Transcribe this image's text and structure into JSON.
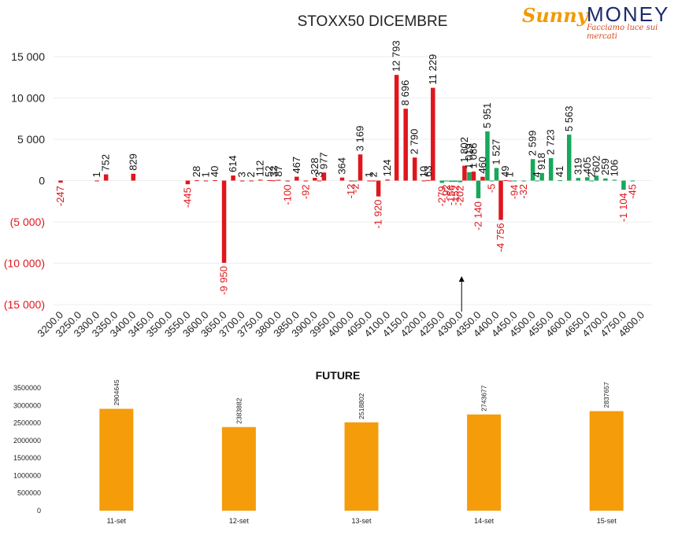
{
  "logo": {
    "brand_part1": "Sunny",
    "brand_part2": "MONEY",
    "tagline": "Facciamo luce sui mercati"
  },
  "colors": {
    "positive": "#16a85b",
    "negative": "#e0161c",
    "future_bar": "#f59c0a",
    "axis_text": "#333333",
    "neg_tick": "#e0161c",
    "logo_orange": "#f29a00",
    "logo_navy": "#1a2a6b"
  },
  "chart_data": [
    {
      "type": "bar",
      "title": "STOXX50 DICEMBRE",
      "ylim": [
        -15000,
        15000
      ],
      "y_ticks": [
        {
          "value": 15000,
          "label": "15 000"
        },
        {
          "value": 10000,
          "label": "10 000"
        },
        {
          "value": 5000,
          "label": "5 000"
        },
        {
          "value": 0,
          "label": "0"
        },
        {
          "value": -5000,
          "label": "(5 000)"
        },
        {
          "value": -10000,
          "label": "(10 000)"
        },
        {
          "value": -15000,
          "label": "(15 000)"
        }
      ],
      "categories": [
        "3200.0",
        "3250.0",
        "3300.0",
        "3350.0",
        "3400.0",
        "3450.0",
        "3500.0",
        "3550.0",
        "3600.0",
        "3650.0",
        "3700.0",
        "3750.0",
        "3800.0",
        "3850.0",
        "3900.0",
        "3950.0",
        "4000.0",
        "4050.0",
        "4100.0",
        "4150.0",
        "4200.0",
        "4250.0",
        "4300.0",
        "4350.0",
        "4400.0",
        "4450.0",
        "4500.0",
        "4550.0",
        "4600.0",
        "4650.0",
        "4700.0",
        "4750.0",
        "4800.0"
      ],
      "grid": true,
      "current_level_marker": {
        "x": 4304
      },
      "bars": [
        {
          "x": 3200,
          "value": -247,
          "label": "-247",
          "color": "red"
        },
        {
          "x": 3300,
          "value": 1,
          "label": "1",
          "color": "red"
        },
        {
          "x": 3325,
          "value": 752,
          "label": "752",
          "color": "red"
        },
        {
          "x": 3400,
          "value": 829,
          "label": "829",
          "color": "red"
        },
        {
          "x": 3550,
          "value": -445,
          "label": "-445",
          "color": "red"
        },
        {
          "x": 3575,
          "value": 28,
          "label": "28",
          "color": "red"
        },
        {
          "x": 3600,
          "value": 1,
          "label": "1",
          "color": "red"
        },
        {
          "x": 3625,
          "value": 40,
          "label": "40",
          "color": "red"
        },
        {
          "x": 3650,
          "value": -9950,
          "label": "-9 950",
          "color": "red"
        },
        {
          "x": 3675,
          "value": 614,
          "label": "614",
          "color": "red"
        },
        {
          "x": 3700,
          "value": 3,
          "label": "3",
          "color": "red"
        },
        {
          "x": 3725,
          "value": 2,
          "label": "2",
          "color": "red"
        },
        {
          "x": 3750,
          "value": 112,
          "label": "112",
          "color": "red"
        },
        {
          "x": 3775,
          "value": 52,
          "label": "52",
          "color": "red"
        },
        {
          "x": 3787,
          "value": 32,
          "label": "32",
          "color": "red"
        },
        {
          "x": 3800,
          "value": 87,
          "label": "87",
          "color": "red"
        },
        {
          "x": 3825,
          "value": -100,
          "label": "-100",
          "color": "red"
        },
        {
          "x": 3850,
          "value": 467,
          "label": "467",
          "color": "red"
        },
        {
          "x": 3875,
          "value": -92,
          "label": "-92",
          "color": "red"
        },
        {
          "x": 3900,
          "value": 328,
          "label": "328",
          "color": "red"
        },
        {
          "x": 3912,
          "value": 3,
          "label": "3",
          "color": "red"
        },
        {
          "x": 3925,
          "value": 977,
          "label": "977",
          "color": "red"
        },
        {
          "x": 3975,
          "value": 364,
          "label": "364",
          "color": "red"
        },
        {
          "x": 4000,
          "value": -12,
          "label": "-12",
          "color": "red"
        },
        {
          "x": 4012,
          "value": -2,
          "label": "-2",
          "color": "green"
        },
        {
          "x": 4025,
          "value": 3169,
          "label": "3 169",
          "color": "red"
        },
        {
          "x": 4050,
          "value": 1,
          "label": "1",
          "color": "red"
        },
        {
          "x": 4062,
          "value": 2,
          "label": "2",
          "color": "red"
        },
        {
          "x": 4075,
          "value": -1920,
          "label": "-1 920",
          "color": "red"
        },
        {
          "x": 4100,
          "value": 124,
          "label": "124",
          "color": "red"
        },
        {
          "x": 4125,
          "value": 12793,
          "label": "12 793",
          "color": "red"
        },
        {
          "x": 4150,
          "value": 8696,
          "label": "8 696",
          "color": "red"
        },
        {
          "x": 4175,
          "value": 2790,
          "label": "2 790",
          "color": "red"
        },
        {
          "x": 4200,
          "value": 10,
          "label": "10",
          "color": "red"
        },
        {
          "x": 4212,
          "value": 63,
          "label": "63",
          "color": "red"
        },
        {
          "x": 4225,
          "value": 11229,
          "label": "11 229",
          "color": "red"
        },
        {
          "x": 4250,
          "value": -279,
          "label": "-279",
          "color": "green"
        },
        {
          "x": 4262,
          "value": -92,
          "label": "-92",
          "color": "green"
        },
        {
          "x": 4275,
          "value": -156,
          "label": "-156",
          "color": "green"
        },
        {
          "x": 4287,
          "value": -152,
          "label": "-152",
          "color": "green"
        },
        {
          "x": 4300,
          "value": -202,
          "label": "-202",
          "color": "green"
        },
        {
          "x": 4312,
          "value": 1802,
          "label": "1 802",
          "color": "red"
        },
        {
          "x": 4325,
          "value": 1019,
          "label": "1 019",
          "color": "green"
        },
        {
          "x": 4337,
          "value": 1086,
          "label": "1 086",
          "color": "red"
        },
        {
          "x": 4350,
          "value": -2140,
          "label": "-2 140",
          "color": "green"
        },
        {
          "x": 4362,
          "value": 460,
          "label": "460",
          "color": "red"
        },
        {
          "x": 4375,
          "value": 5951,
          "label": "5 951",
          "color": "green"
        },
        {
          "x": 4387,
          "value": -5,
          "label": "-5",
          "color": "green"
        },
        {
          "x": 4400,
          "value": 1527,
          "label": "1 527",
          "color": "green"
        },
        {
          "x": 4412,
          "value": -4756,
          "label": "-4 756",
          "color": "red"
        },
        {
          "x": 4425,
          "value": 49,
          "label": "49",
          "color": "red"
        },
        {
          "x": 4437,
          "value": 1,
          "label": "1",
          "color": "red"
        },
        {
          "x": 4450,
          "value": -94,
          "label": "-94",
          "color": "green"
        },
        {
          "x": 4475,
          "value": -32,
          "label": "-32",
          "color": "green"
        },
        {
          "x": 4500,
          "value": 2599,
          "label": "2 599",
          "color": "green"
        },
        {
          "x": 4512,
          "value": 4,
          "label": "4",
          "color": "green"
        },
        {
          "x": 4525,
          "value": 918,
          "label": "918",
          "color": "green"
        },
        {
          "x": 4550,
          "value": 2723,
          "label": "2 723",
          "color": "green"
        },
        {
          "x": 4575,
          "value": 41,
          "label": "41",
          "color": "green"
        },
        {
          "x": 4600,
          "value": 5563,
          "label": "5 563",
          "color": "green"
        },
        {
          "x": 4625,
          "value": 319,
          "label": "319",
          "color": "green"
        },
        {
          "x": 4650,
          "value": 405,
          "label": "405",
          "color": "green"
        },
        {
          "x": 4662,
          "value": 2,
          "label": "2",
          "color": "green"
        },
        {
          "x": 4675,
          "value": 602,
          "label": "602",
          "color": "green"
        },
        {
          "x": 4700,
          "value": 259,
          "label": "259",
          "color": "green"
        },
        {
          "x": 4725,
          "value": 106,
          "label": "106",
          "color": "green"
        },
        {
          "x": 4750,
          "value": -1104,
          "label": "-1 104",
          "color": "green"
        },
        {
          "x": 4775,
          "value": -45,
          "label": "-45",
          "color": "green"
        }
      ]
    },
    {
      "type": "bar",
      "title": "FUTURE",
      "ylim": [
        0,
        3500000
      ],
      "y_ticks": [
        {
          "value": 3500000,
          "label": "3500000"
        },
        {
          "value": 3000000,
          "label": "3000000"
        },
        {
          "value": 2500000,
          "label": "2500000"
        },
        {
          "value": 2000000,
          "label": "2000000"
        },
        {
          "value": 1500000,
          "label": "1500000"
        },
        {
          "value": 1000000,
          "label": "1000000"
        },
        {
          "value": 500000,
          "label": "500000"
        },
        {
          "value": 0,
          "label": "0"
        }
      ],
      "categories": [
        "11-set",
        "12-set",
        "13-set",
        "14-set",
        "15-set"
      ],
      "values": [
        2904645,
        2383882,
        2518802,
        2743677,
        2837657
      ],
      "value_labels": [
        "2904645",
        "2383882",
        "2518802",
        "2743677",
        "2837657"
      ]
    }
  ]
}
